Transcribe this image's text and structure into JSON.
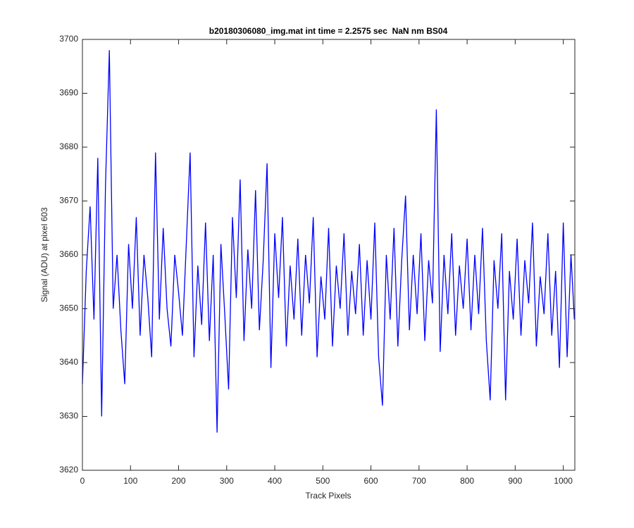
{
  "chart_data": {
    "type": "line",
    "title": "b20180306080_img.mat int time = 2.2575 sec  NaN nm BS04",
    "x_label": "Track Pixels",
    "y_label": "Signal (ADU) at pixel 603",
    "x": [
      0,
      8,
      16,
      24,
      32,
      40,
      48,
      56,
      64,
      72,
      80,
      88,
      96,
      104,
      112,
      120,
      128,
      136,
      144,
      152,
      160,
      168,
      176,
      184,
      192,
      200,
      208,
      216,
      224,
      232,
      240,
      248,
      256,
      264,
      272,
      280,
      288,
      296,
      304,
      312,
      320,
      328,
      336,
      344,
      352,
      360,
      368,
      376,
      384,
      392,
      400,
      408,
      416,
      424,
      432,
      440,
      448,
      456,
      464,
      472,
      480,
      488,
      496,
      504,
      512,
      520,
      528,
      536,
      544,
      552,
      560,
      568,
      576,
      584,
      592,
      600,
      608,
      616,
      624,
      632,
      640,
      648,
      656,
      664,
      672,
      680,
      688,
      696,
      704,
      712,
      720,
      728,
      736,
      744,
      752,
      760,
      768,
      776,
      784,
      792,
      800,
      808,
      816,
      824,
      832,
      840,
      848,
      856,
      864,
      872,
      880,
      888,
      896,
      904,
      912,
      920,
      928,
      936,
      944,
      952,
      960,
      968,
      976,
      984,
      992,
      1000,
      1008,
      1016,
      1023
    ],
    "series": [
      {
        "color": "#0000ff",
        "values": [
          3636,
          3657,
          3669,
          3648,
          3678,
          3630,
          3673,
          3698,
          3650,
          3660,
          3646,
          3636,
          3662,
          3650,
          3667,
          3645,
          3660,
          3652,
          3641,
          3679,
          3648,
          3665,
          3650,
          3643,
          3660,
          3653,
          3645,
          3662,
          3679,
          3641,
          3658,
          3647,
          3666,
          3644,
          3660,
          3627,
          3662,
          3649,
          3635,
          3667,
          3652,
          3674,
          3644,
          3661,
          3650,
          3672,
          3646,
          3659,
          3677,
          3639,
          3664,
          3652,
          3667,
          3643,
          3658,
          3648,
          3663,
          3645,
          3660,
          3651,
          3667,
          3641,
          3656,
          3648,
          3665,
          3643,
          3658,
          3650,
          3664,
          3645,
          3657,
          3649,
          3662,
          3645,
          3659,
          3648,
          3666,
          3641,
          3632,
          3660,
          3648,
          3665,
          3643,
          3659,
          3671,
          3646,
          3660,
          3649,
          3664,
          3644,
          3659,
          3651,
          3687,
          3642,
          3660,
          3649,
          3664,
          3645,
          3658,
          3650,
          3663,
          3646,
          3660,
          3649,
          3665,
          3644,
          3633,
          3659,
          3650,
          3664,
          3633,
          3657,
          3648,
          3663,
          3645,
          3659,
          3651,
          3666,
          3643,
          3656,
          3649,
          3664,
          3645,
          3657,
          3639,
          3666,
          3641,
          3660,
          3648
        ]
      }
    ],
    "xlim": [
      0,
      1024
    ],
    "ylim": [
      3620,
      3700
    ],
    "xticks": [
      0,
      100,
      200,
      300,
      400,
      500,
      600,
      700,
      800,
      900,
      1000
    ],
    "yticks": [
      3620,
      3630,
      3640,
      3650,
      3660,
      3670,
      3680,
      3690,
      3700
    ]
  }
}
